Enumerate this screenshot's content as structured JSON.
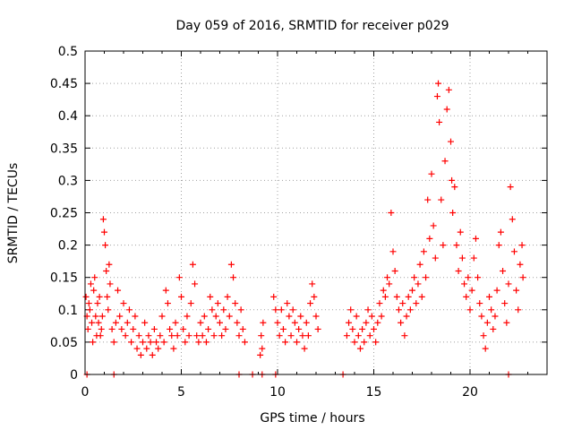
{
  "chart_data": {
    "type": "scatter",
    "title": "Day 059 of 2016, SRMTID for receiver p029",
    "xlabel": "GPS time / hours",
    "ylabel": "SRMTID / TECUs",
    "xlim": [
      0,
      24
    ],
    "ylim": [
      0,
      0.5
    ],
    "x_ticks": [
      0,
      5,
      10,
      15,
      20
    ],
    "x_tick_labels": [
      "0",
      "5",
      "10",
      "15",
      "20"
    ],
    "y_ticks": [
      0,
      0.05,
      0.1,
      0.15,
      0.2,
      0.25,
      0.3,
      0.35,
      0.4,
      0.45,
      0.5
    ],
    "y_tick_labels": [
      "0",
      "0.05",
      "0.1",
      "0.15",
      "0.2",
      "0.25",
      "0.3",
      "0.35",
      "0.4",
      "0.45",
      "0.5"
    ],
    "grid": true,
    "marker": "+",
    "color": "#ff0000",
    "series": [
      {
        "name": "SRMTID",
        "points": [
          [
            0.05,
            0.12
          ],
          [
            0.1,
            0.09
          ],
          [
            0.15,
            0.07
          ],
          [
            0.2,
            0.11
          ],
          [
            0.25,
            0.1
          ],
          [
            0.3,
            0.14
          ],
          [
            0.35,
            0.08
          ],
          [
            0.4,
            0.05
          ],
          [
            0.45,
            0.13
          ],
          [
            0.5,
            0.15
          ],
          [
            0.55,
            0.09
          ],
          [
            0.6,
            0.06
          ],
          [
            0.65,
            0.11
          ],
          [
            0.7,
            0.08
          ],
          [
            0.75,
            0.12
          ],
          [
            0.8,
            0.06
          ],
          [
            0.85,
            0.07
          ],
          [
            0.9,
            0.09
          ],
          [
            0.95,
            0.24
          ],
          [
            1.0,
            0.22
          ],
          [
            1.05,
            0.2
          ],
          [
            1.1,
            0.16
          ],
          [
            1.15,
            0.12
          ],
          [
            1.2,
            0.1
          ],
          [
            1.25,
            0.17
          ],
          [
            1.3,
            0.14
          ],
          [
            1.4,
            0.07
          ],
          [
            1.5,
            0.05
          ],
          [
            1.6,
            0.08
          ],
          [
            1.7,
            0.13
          ],
          [
            1.8,
            0.09
          ],
          [
            1.9,
            0.07
          ],
          [
            2.0,
            0.11
          ],
          [
            2.1,
            0.06
          ],
          [
            2.2,
            0.08
          ],
          [
            2.3,
            0.1
          ],
          [
            2.4,
            0.05
          ],
          [
            2.5,
            0.07
          ],
          [
            2.6,
            0.09
          ],
          [
            2.7,
            0.04
          ],
          [
            2.8,
            0.06
          ],
          [
            2.9,
            0.03
          ],
          [
            3.0,
            0.05
          ],
          [
            3.1,
            0.08
          ],
          [
            3.2,
            0.04
          ],
          [
            3.3,
            0.06
          ],
          [
            3.4,
            0.05
          ],
          [
            3.5,
            0.03
          ],
          [
            3.6,
            0.07
          ],
          [
            3.7,
            0.05
          ],
          [
            3.8,
            0.04
          ],
          [
            3.9,
            0.06
          ],
          [
            4.0,
            0.09
          ],
          [
            4.1,
            0.05
          ],
          [
            4.2,
            0.13
          ],
          [
            4.3,
            0.11
          ],
          [
            4.4,
            0.07
          ],
          [
            4.5,
            0.06
          ],
          [
            4.6,
            0.04
          ],
          [
            4.7,
            0.08
          ],
          [
            4.8,
            0.06
          ],
          [
            4.9,
            0.15
          ],
          [
            5.0,
            0.12
          ],
          [
            5.1,
            0.07
          ],
          [
            5.2,
            0.05
          ],
          [
            5.3,
            0.09
          ],
          [
            5.4,
            0.06
          ],
          [
            5.5,
            0.11
          ],
          [
            5.6,
            0.17
          ],
          [
            5.7,
            0.14
          ],
          [
            5.8,
            0.06
          ],
          [
            5.9,
            0.05
          ],
          [
            6.0,
            0.08
          ],
          [
            6.1,
            0.06
          ],
          [
            6.2,
            0.09
          ],
          [
            6.3,
            0.05
          ],
          [
            6.4,
            0.07
          ],
          [
            6.5,
            0.12
          ],
          [
            6.6,
            0.1
          ],
          [
            6.7,
            0.06
          ],
          [
            6.8,
            0.09
          ],
          [
            6.9,
            0.11
          ],
          [
            7.0,
            0.08
          ],
          [
            7.1,
            0.06
          ],
          [
            7.2,
            0.1
          ],
          [
            7.3,
            0.07
          ],
          [
            7.4,
            0.12
          ],
          [
            7.5,
            0.09
          ],
          [
            7.6,
            0.17
          ],
          [
            7.7,
            0.15
          ],
          [
            7.8,
            0.11
          ],
          [
            7.9,
            0.08
          ],
          [
            8.0,
            0.06
          ],
          [
            8.1,
            0.1
          ],
          [
            8.2,
            0.07
          ],
          [
            8.3,
            0.05
          ],
          [
            9.1,
            0.03
          ],
          [
            9.15,
            0.06
          ],
          [
            9.2,
            0.04
          ],
          [
            9.25,
            0.08
          ],
          [
            9.8,
            0.12
          ],
          [
            9.9,
            0.1
          ],
          [
            10.0,
            0.08
          ],
          [
            10.1,
            0.06
          ],
          [
            10.2,
            0.1
          ],
          [
            10.3,
            0.07
          ],
          [
            10.4,
            0.05
          ],
          [
            10.5,
            0.11
          ],
          [
            10.6,
            0.09
          ],
          [
            10.7,
            0.06
          ],
          [
            10.8,
            0.1
          ],
          [
            10.9,
            0.08
          ],
          [
            11.0,
            0.05
          ],
          [
            11.1,
            0.07
          ],
          [
            11.2,
            0.09
          ],
          [
            11.3,
            0.06
          ],
          [
            11.4,
            0.04
          ],
          [
            11.5,
            0.08
          ],
          [
            11.6,
            0.06
          ],
          [
            11.7,
            0.11
          ],
          [
            11.8,
            0.14
          ],
          [
            11.9,
            0.12
          ],
          [
            12.0,
            0.09
          ],
          [
            12.1,
            0.07
          ],
          [
            13.6,
            0.06
          ],
          [
            13.7,
            0.08
          ],
          [
            13.8,
            0.1
          ],
          [
            13.9,
            0.07
          ],
          [
            14.0,
            0.05
          ],
          [
            14.1,
            0.09
          ],
          [
            14.2,
            0.06
          ],
          [
            14.3,
            0.04
          ],
          [
            14.4,
            0.07
          ],
          [
            14.5,
            0.05
          ],
          [
            14.6,
            0.08
          ],
          [
            14.7,
            0.1
          ],
          [
            14.8,
            0.06
          ],
          [
            14.9,
            0.09
          ],
          [
            15.0,
            0.07
          ],
          [
            15.1,
            0.05
          ],
          [
            15.2,
            0.08
          ],
          [
            15.3,
            0.11
          ],
          [
            15.4,
            0.09
          ],
          [
            15.5,
            0.13
          ],
          [
            15.6,
            0.12
          ],
          [
            15.7,
            0.15
          ],
          [
            15.8,
            0.14
          ],
          [
            15.9,
            0.25
          ],
          [
            16.0,
            0.19
          ],
          [
            16.1,
            0.16
          ],
          [
            16.2,
            0.12
          ],
          [
            16.3,
            0.1
          ],
          [
            16.4,
            0.08
          ],
          [
            16.5,
            0.11
          ],
          [
            16.6,
            0.06
          ],
          [
            16.7,
            0.09
          ],
          [
            16.8,
            0.12
          ],
          [
            16.9,
            0.1
          ],
          [
            17.0,
            0.13
          ],
          [
            17.1,
            0.15
          ],
          [
            17.2,
            0.11
          ],
          [
            17.3,
            0.14
          ],
          [
            17.4,
            0.17
          ],
          [
            17.5,
            0.12
          ],
          [
            17.6,
            0.19
          ],
          [
            17.7,
            0.15
          ],
          [
            17.8,
            0.27
          ],
          [
            17.9,
            0.21
          ],
          [
            18.0,
            0.31
          ],
          [
            18.1,
            0.23
          ],
          [
            18.2,
            0.18
          ],
          [
            18.3,
            0.43
          ],
          [
            18.35,
            0.45
          ],
          [
            18.4,
            0.39
          ],
          [
            18.5,
            0.27
          ],
          [
            18.6,
            0.2
          ],
          [
            18.7,
            0.33
          ],
          [
            18.8,
            0.41
          ],
          [
            18.9,
            0.44
          ],
          [
            19.0,
            0.36
          ],
          [
            19.05,
            0.3
          ],
          [
            19.1,
            0.25
          ],
          [
            19.2,
            0.29
          ],
          [
            19.3,
            0.2
          ],
          [
            19.4,
            0.16
          ],
          [
            19.5,
            0.22
          ],
          [
            19.6,
            0.18
          ],
          [
            19.7,
            0.14
          ],
          [
            19.8,
            0.12
          ],
          [
            19.9,
            0.15
          ],
          [
            20.0,
            0.1
          ],
          [
            20.1,
            0.13
          ],
          [
            20.2,
            0.18
          ],
          [
            20.3,
            0.21
          ],
          [
            20.4,
            0.15
          ],
          [
            20.5,
            0.11
          ],
          [
            20.6,
            0.09
          ],
          [
            20.7,
            0.06
          ],
          [
            20.8,
            0.04
          ],
          [
            20.9,
            0.08
          ],
          [
            21.0,
            0.12
          ],
          [
            21.1,
            0.1
          ],
          [
            21.2,
            0.07
          ],
          [
            21.3,
            0.09
          ],
          [
            21.4,
            0.13
          ],
          [
            21.5,
            0.2
          ],
          [
            21.6,
            0.22
          ],
          [
            21.7,
            0.16
          ],
          [
            21.8,
            0.11
          ],
          [
            21.9,
            0.08
          ],
          [
            22.0,
            0.14
          ],
          [
            22.1,
            0.29
          ],
          [
            22.2,
            0.24
          ],
          [
            22.3,
            0.19
          ],
          [
            22.4,
            0.13
          ],
          [
            22.5,
            0.1
          ],
          [
            22.6,
            0.17
          ],
          [
            22.7,
            0.2
          ],
          [
            22.75,
            0.15
          ],
          [
            0.1,
            0.0
          ],
          [
            1.5,
            0.0
          ],
          [
            8.0,
            0.0
          ],
          [
            8.7,
            0.0
          ],
          [
            9.2,
            0.0
          ],
          [
            9.9,
            0.0
          ],
          [
            13.4,
            0.0
          ],
          [
            22.0,
            0.0
          ]
        ]
      }
    ]
  }
}
